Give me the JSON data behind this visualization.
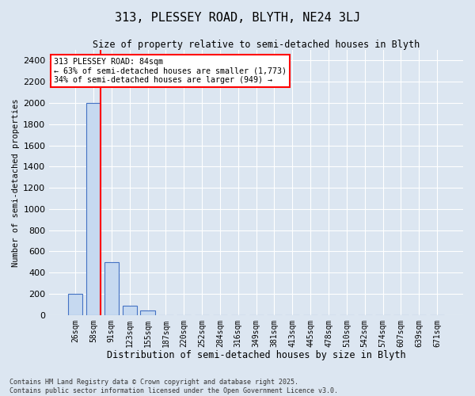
{
  "title": "313, PLESSEY ROAD, BLYTH, NE24 3LJ",
  "subtitle": "Size of property relative to semi-detached houses in Blyth",
  "xlabel": "Distribution of semi-detached houses by size in Blyth",
  "ylabel": "Number of semi-detached properties",
  "categories": [
    "26sqm",
    "58sqm",
    "91sqm",
    "123sqm",
    "155sqm",
    "187sqm",
    "220sqm",
    "252sqm",
    "284sqm",
    "316sqm",
    "349sqm",
    "381sqm",
    "413sqm",
    "445sqm",
    "478sqm",
    "510sqm",
    "542sqm",
    "574sqm",
    "607sqm",
    "639sqm",
    "671sqm"
  ],
  "values": [
    200,
    2000,
    500,
    90,
    40,
    0,
    0,
    0,
    0,
    0,
    0,
    0,
    0,
    0,
    0,
    0,
    0,
    0,
    0,
    0,
    0
  ],
  "bar_color": "#c6d9f0",
  "bar_edge_color": "#4472c4",
  "property_line_color": "red",
  "property_line_xindex": 1,
  "annotation_title": "313 PLESSEY ROAD: 84sqm",
  "annotation_line1": "← 63% of semi-detached houses are smaller (1,773)",
  "annotation_line2": "34% of semi-detached houses are larger (949) →",
  "annotation_box_color": "red",
  "ylim": [
    0,
    2500
  ],
  "yticks": [
    0,
    200,
    400,
    600,
    800,
    1000,
    1200,
    1400,
    1600,
    1800,
    2000,
    2200,
    2400
  ],
  "footer_line1": "Contains HM Land Registry data © Crown copyright and database right 2025.",
  "footer_line2": "Contains public sector information licensed under the Open Government Licence v3.0.",
  "bg_color": "#dce6f1",
  "plot_bg_color": "#dce6f1",
  "grid_color": "white"
}
